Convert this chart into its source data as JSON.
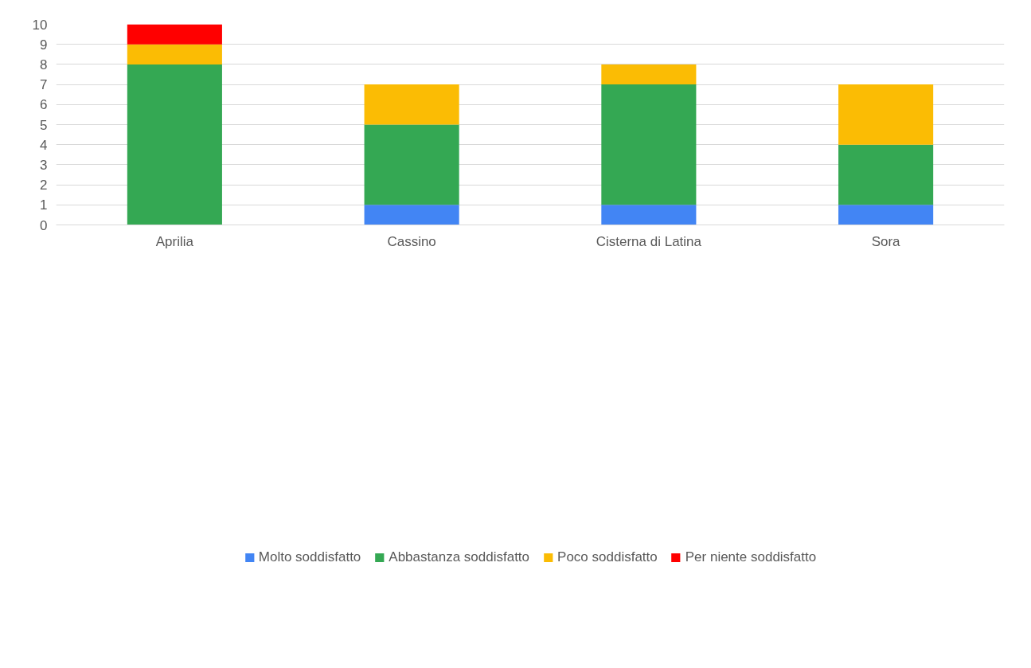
{
  "chart_data": {
    "type": "bar",
    "stacked": true,
    "categories": [
      "Aprilia",
      "Cassino",
      "Cisterna di Latina",
      "Sora"
    ],
    "series": [
      {
        "name": "Molto soddisfatto",
        "color": "#4285f4",
        "values": [
          0,
          1,
          1,
          1
        ]
      },
      {
        "name": "Abbastanza soddisfatto",
        "color": "#34a853",
        "values": [
          8,
          4,
          6,
          3
        ]
      },
      {
        "name": "Poco soddisfatto",
        "color": "#fbbc04",
        "values": [
          1,
          2,
          1,
          3
        ]
      },
      {
        "name": "Per niente soddisfatto",
        "color": "#ff0000",
        "values": [
          1,
          0,
          0,
          0
        ]
      }
    ],
    "ylim": [
      0,
      10
    ],
    "yticks": [
      0,
      1,
      2,
      3,
      4,
      5,
      6,
      7,
      8,
      9,
      10
    ],
    "grid": "y",
    "legend": "bottom"
  }
}
